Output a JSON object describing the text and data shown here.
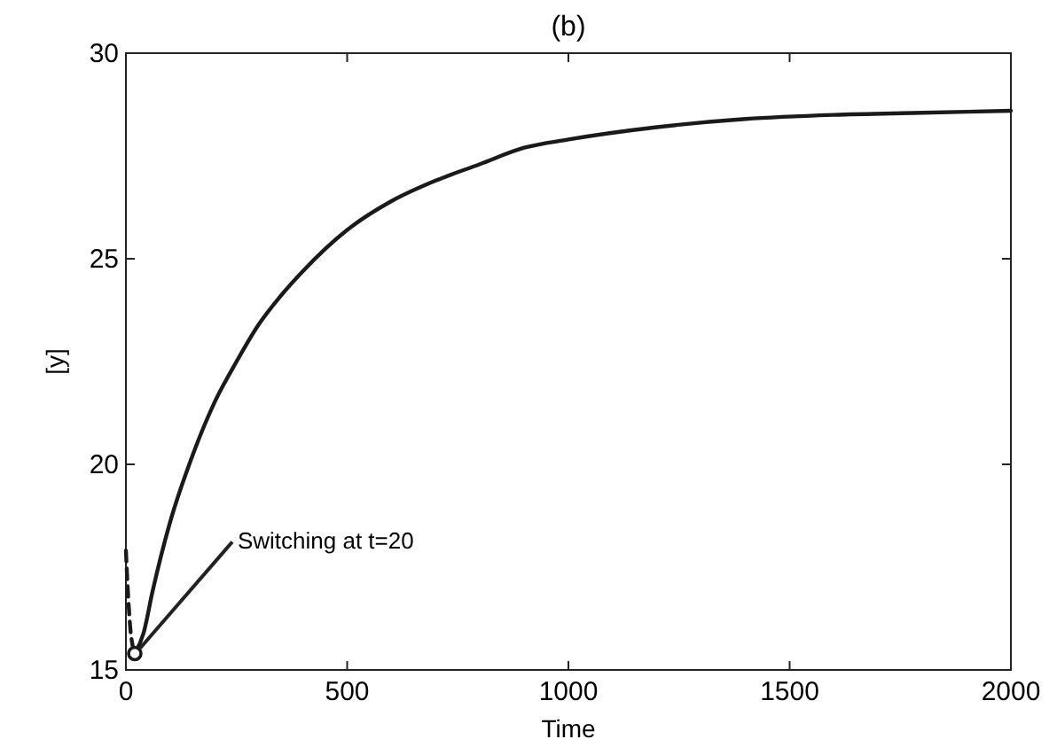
{
  "chart_data": {
    "type": "line",
    "title": "(b)",
    "xlabel": "Time",
    "ylabel": "[y]",
    "xlim": [
      0,
      2000
    ],
    "xticks": [
      0,
      500,
      1000,
      1500,
      2000
    ],
    "ylim": [
      15,
      30
    ],
    "yticks": [
      15,
      20,
      25,
      30
    ],
    "series": [
      {
        "color": "#1a1a1a",
        "line_style": "dashed",
        "x": [
          0,
          5,
          10,
          15,
          20
        ],
        "values": [
          17.9,
          16.8,
          16.0,
          15.6,
          15.4
        ]
      },
      {
        "color": "#1a1a1a",
        "line_style": "solid",
        "x": [
          20,
          40,
          60,
          100,
          150,
          200,
          250,
          300,
          350,
          400,
          500,
          600,
          700,
          800,
          900,
          1000,
          1200,
          1400,
          1600,
          1800,
          2000
        ],
        "values": [
          15.4,
          15.9,
          16.9,
          18.6,
          20.2,
          21.5,
          22.5,
          23.4,
          24.1,
          24.7,
          25.7,
          26.4,
          26.9,
          27.3,
          27.7,
          27.9,
          28.2,
          28.4,
          28.5,
          28.55,
          28.6
        ]
      },
      {
        "type": "scatter",
        "color": "#1a1a1a",
        "marker": "circle",
        "x": [
          20
        ],
        "values": [
          15.4
        ]
      }
    ],
    "annotations": [
      {
        "text": "Switching at t=20",
        "x": 20,
        "y": 15.4
      }
    ]
  }
}
